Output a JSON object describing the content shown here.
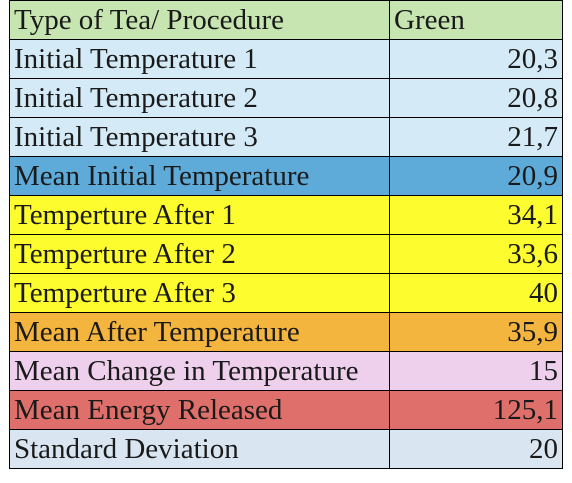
{
  "header": {
    "label": "Type of Tea/ Procedure",
    "value": "Green",
    "color": "#c6e5b0"
  },
  "rows": [
    {
      "label": "Initial Temperature 1",
      "value": "20,3",
      "color": "#d4ebf7"
    },
    {
      "label": "Initial Temperature 2",
      "value": "20,8",
      "color": "#d4ebf7"
    },
    {
      "label": "Initial Temperature 3",
      "value": "21,7",
      "color": "#d4ebf7"
    },
    {
      "label": "Mean Initial Temperature",
      "value": "20,9",
      "color": "#5eabd9"
    },
    {
      "label": "Temperture After 1",
      "value": "34,1",
      "color": "#fcfc2e"
    },
    {
      "label": "Temperture After 2",
      "value": "33,6",
      "color": "#fcfc2e"
    },
    {
      "label": "Temperture After 3",
      "value": "40",
      "color": "#fcfc2e"
    },
    {
      "label": "Mean After Temperature",
      "value": "35,9",
      "color": "#f4b53f"
    },
    {
      "label": "Mean Change in Temperature",
      "value": "15",
      "color": "#eecfec"
    },
    {
      "label": "Mean Energy Released",
      "value": "125,1",
      "color": "#de6f6a"
    },
    {
      "label": "Standard Deviation",
      "value": "20",
      "color": "#dae5f2"
    }
  ]
}
